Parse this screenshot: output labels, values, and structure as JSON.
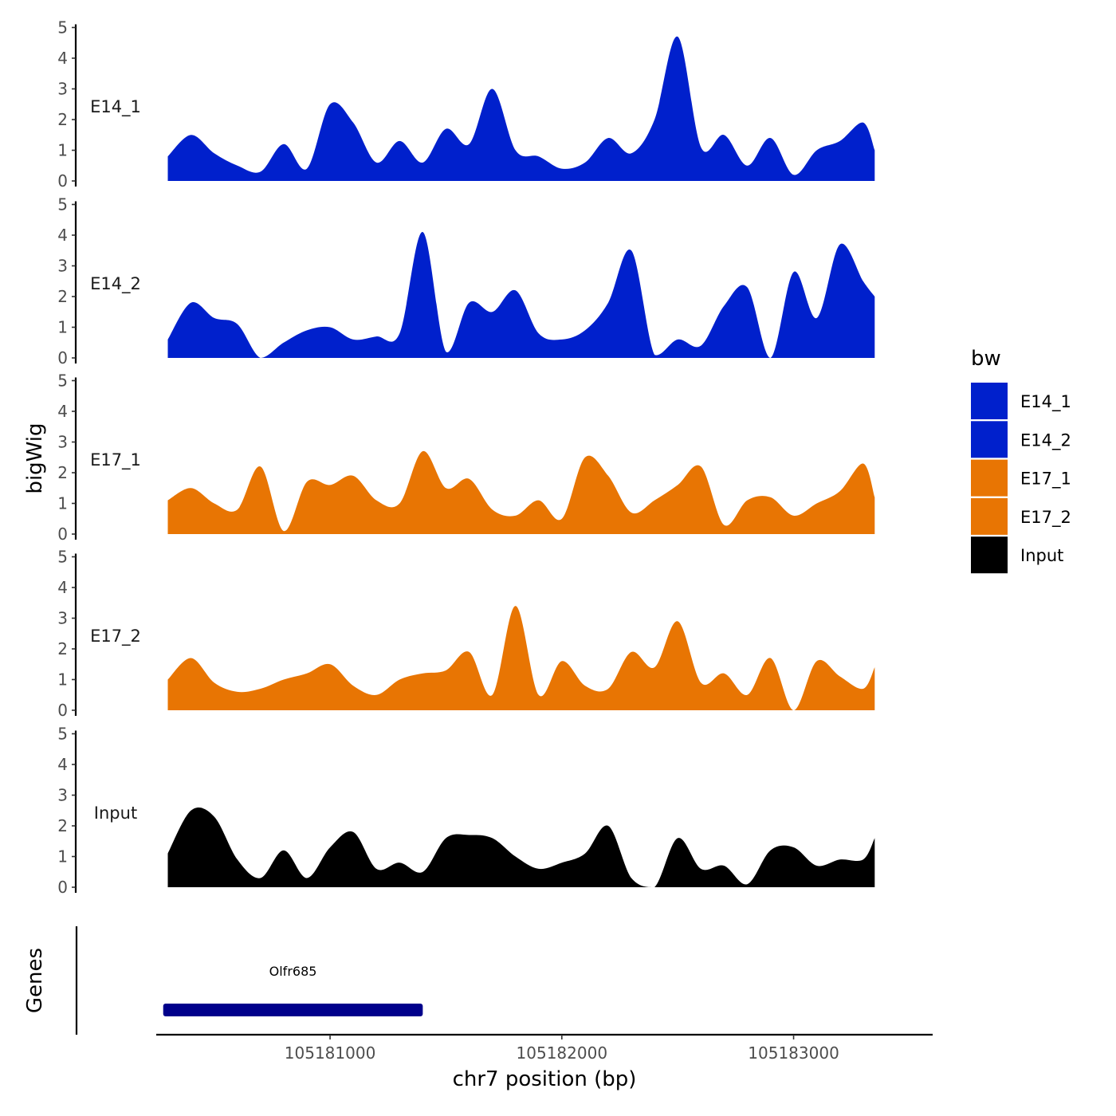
{
  "chart_data": {
    "type": "area",
    "ylabel": "bigWig",
    "xlabel": "chr7 position (bp)",
    "xlim": [
      105180250,
      105183600
    ],
    "ylim": [
      0,
      5
    ],
    "yticks": [
      0,
      1,
      2,
      3,
      4,
      5
    ],
    "xticks": [
      105181000,
      105182000,
      105183000
    ],
    "xtick_labels": [
      "105181000",
      "105182000",
      "105183000"
    ],
    "legend": {
      "title": "bw",
      "position": "right",
      "entries": [
        {
          "label": "E14_1",
          "color": "#0020CC"
        },
        {
          "label": "E14_2",
          "color": "#0020CC"
        },
        {
          "label": "E17_1",
          "color": "#E87503"
        },
        {
          "label": "E17_2",
          "color": "#E87503"
        },
        {
          "label": "Input",
          "color": "#000000"
        }
      ]
    },
    "x": [
      105180300,
      105180400,
      105180500,
      105180600,
      105180700,
      105180800,
      105180900,
      105181000,
      105181100,
      105181200,
      105181300,
      105181400,
      105181500,
      105181600,
      105181700,
      105181800,
      105181900,
      105182000,
      105182100,
      105182200,
      105182300,
      105182400,
      105182500,
      105182600,
      105182700,
      105182800,
      105182900,
      105183000,
      105183100,
      105183200,
      105183300,
      105183350
    ],
    "series": [
      {
        "name": "E14_1",
        "color": "#0020CC",
        "values": [
          0.8,
          1.5,
          0.9,
          0.5,
          0.3,
          1.2,
          0.4,
          2.5,
          1.9,
          0.6,
          1.3,
          0.6,
          1.7,
          1.2,
          3.0,
          1.0,
          0.8,
          0.4,
          0.6,
          1.4,
          0.9,
          2.0,
          4.7,
          1.1,
          1.5,
          0.5,
          1.4,
          0.2,
          1.0,
          1.3,
          1.9,
          1.0
        ]
      },
      {
        "name": "E14_2",
        "color": "#0020CC",
        "values": [
          0.6,
          1.8,
          1.3,
          1.1,
          0.0,
          0.5,
          0.9,
          1.0,
          0.6,
          0.7,
          0.8,
          4.1,
          0.2,
          1.8,
          1.5,
          2.2,
          0.8,
          0.6,
          0.9,
          1.8,
          3.5,
          0.1,
          0.6,
          0.4,
          1.7,
          2.3,
          0.0,
          2.8,
          1.3,
          3.7,
          2.5,
          2.0
        ]
      },
      {
        "name": "E17_1",
        "color": "#E87503",
        "values": [
          1.1,
          1.5,
          1.0,
          0.8,
          2.2,
          0.1,
          1.7,
          1.6,
          1.9,
          1.1,
          1.0,
          2.7,
          1.5,
          1.8,
          0.8,
          0.6,
          1.1,
          0.5,
          2.5,
          1.9,
          0.7,
          1.1,
          1.6,
          2.2,
          0.3,
          1.1,
          1.2,
          0.6,
          1.0,
          1.4,
          2.3,
          1.2
        ]
      },
      {
        "name": "E17_2",
        "color": "#E87503",
        "values": [
          1.0,
          1.7,
          0.9,
          0.6,
          0.7,
          1.0,
          1.2,
          1.5,
          0.8,
          0.5,
          1.0,
          1.2,
          1.3,
          1.9,
          0.5,
          3.4,
          0.5,
          1.6,
          0.8,
          0.7,
          1.9,
          1.4,
          2.9,
          0.9,
          1.2,
          0.5,
          1.7,
          0.0,
          1.6,
          1.1,
          0.7,
          1.4
        ]
      },
      {
        "name": "Input",
        "color": "#000000",
        "values": [
          1.1,
          2.5,
          2.3,
          0.9,
          0.3,
          1.2,
          0.3,
          1.3,
          1.8,
          0.6,
          0.8,
          0.5,
          1.6,
          1.7,
          1.6,
          1.0,
          0.6,
          0.8,
          1.1,
          2.0,
          0.3,
          0.0,
          1.6,
          0.6,
          0.7,
          0.1,
          1.2,
          1.3,
          0.7,
          0.9,
          0.9,
          1.6
        ]
      }
    ],
    "genes_track": {
      "ylabel": "Genes",
      "genes": [
        {
          "name": "Olfr685",
          "start": 105180280,
          "end": 105181400,
          "color": "#00008B"
        }
      ]
    }
  }
}
